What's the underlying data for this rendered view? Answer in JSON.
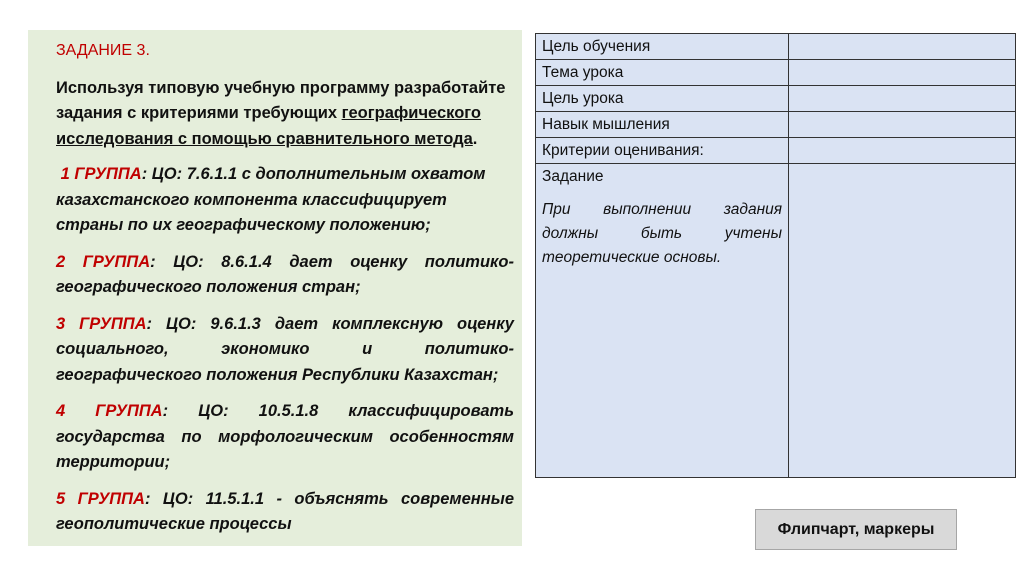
{
  "task": {
    "title": "ЗАДАНИЕ 3.",
    "intro_plain": "Используя типовую учебную программу разработайте задания с критериями требующих ",
    "intro_underlined": "географического исследования с помощью сравнительного метода",
    "intro_end": ".",
    "groups": [
      {
        "label": "1 ГРУППА",
        "text": ": ЦО: 7.6.1.1 с дополнительным охватом казахстанского компонента классифицирует страны по их географическому положению;"
      },
      {
        "label": "2 ГРУППА",
        "text": ": ЦО: 8.6.1.4 дает оценку политико-географического положения стран;"
      },
      {
        "label": "3 ГРУППА",
        "text": ": ЦО: 9.6.1.3 дает комплексную оценку социального, экономико и политико-географического положения Республики Казахстан;"
      },
      {
        "label": "4 ГРУППА",
        "text": ": ЦО: 10.5.1.8 классифицировать государства по морфологическим особенностям территории;"
      },
      {
        "label": "5 ГРУППА",
        "text": ": ЦО: 11.5.1.1 - объяснять современные геополитические процессы"
      }
    ]
  },
  "table": {
    "rows": [
      "Цель обучения",
      "Тема урока",
      "Цель урока",
      "Навык мышления",
      "Критерии оценивания:"
    ],
    "task_row": {
      "label": "Задание",
      "note": "При выполнении задания должны быть учтены теоретические основы."
    }
  },
  "materials_label": "Флипчарт, маркеры",
  "colors": {
    "panel": "#e5eedb",
    "table": "#dae3f3",
    "accent_red": "#c00000"
  }
}
